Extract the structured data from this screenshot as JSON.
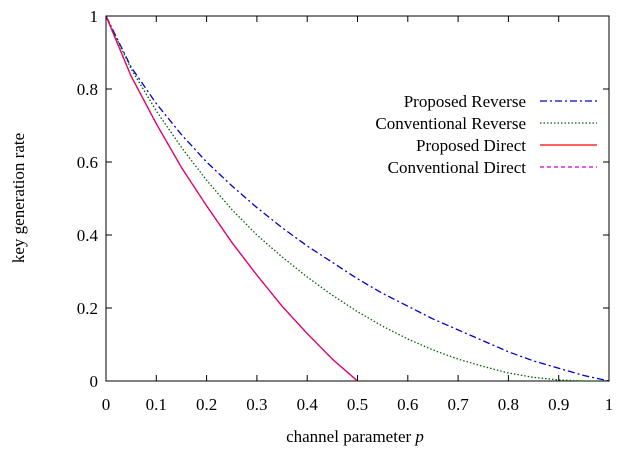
{
  "chart_data": {
    "type": "line",
    "xlabel": "channel parameter",
    "xlabel_var": "p",
    "ylabel": "key generation rate",
    "xlim": [
      0,
      1
    ],
    "ylim": [
      0,
      1
    ],
    "xticks": [
      0,
      0.1,
      0.2,
      0.3,
      0.4,
      0.5,
      0.6,
      0.7,
      0.8,
      0.9,
      1
    ],
    "xtick_labels": [
      "0",
      "0.1",
      "0.2",
      "0.3",
      "0.4",
      "0.5",
      "0.6",
      "0.7",
      "0.8",
      "0.9",
      "1"
    ],
    "yticks": [
      0,
      0.2,
      0.4,
      0.6,
      0.8,
      1
    ],
    "ytick_labels": [
      "0",
      "0.2",
      "0.4",
      "0.6",
      "0.8",
      "1"
    ],
    "grid": false,
    "legend_position": "top-right",
    "series": [
      {
        "name": "Proposed Reverse",
        "color": "#0000cc",
        "dash": "dash-dot",
        "x": [
          0,
          0.05,
          0.1,
          0.15,
          0.2,
          0.25,
          0.3,
          0.35,
          0.4,
          0.45,
          0.5,
          0.55,
          0.6,
          0.65,
          0.7,
          0.75,
          0.8,
          0.85,
          0.9,
          0.95,
          1.0
        ],
        "y": [
          1.0,
          0.86,
          0.76,
          0.675,
          0.6,
          0.535,
          0.475,
          0.42,
          0.37,
          0.325,
          0.28,
          0.24,
          0.205,
          0.17,
          0.14,
          0.11,
          0.08,
          0.055,
          0.035,
          0.015,
          0.0
        ]
      },
      {
        "name": "Conventional Reverse",
        "color": "#006400",
        "dash": "dotted",
        "x": [
          0,
          0.05,
          0.1,
          0.15,
          0.2,
          0.25,
          0.3,
          0.35,
          0.4,
          0.45,
          0.5,
          0.55,
          0.6,
          0.65,
          0.7,
          0.75,
          0.8,
          0.85,
          0.9,
          0.95,
          1.0
        ],
        "y": [
          1.0,
          0.855,
          0.74,
          0.64,
          0.55,
          0.47,
          0.4,
          0.34,
          0.285,
          0.235,
          0.19,
          0.15,
          0.115,
          0.085,
          0.06,
          0.04,
          0.022,
          0.01,
          0.003,
          0.0,
          0.0
        ]
      },
      {
        "name": "Proposed Direct",
        "color": "#ff0000",
        "dash": "solid",
        "x": [
          0,
          0.05,
          0.1,
          0.15,
          0.2,
          0.25,
          0.3,
          0.35,
          0.4,
          0.45,
          0.5
        ],
        "y": [
          1.0,
          0.835,
          0.705,
          0.585,
          0.48,
          0.38,
          0.29,
          0.205,
          0.13,
          0.06,
          0.0
        ]
      },
      {
        "name": "Conventional Direct",
        "color": "#cc00cc",
        "dash": "dashed",
        "x": [
          0,
          0.05,
          0.1,
          0.15,
          0.2,
          0.25,
          0.3,
          0.35,
          0.4,
          0.45,
          0.5
        ],
        "y": [
          1.0,
          0.835,
          0.705,
          0.585,
          0.48,
          0.38,
          0.29,
          0.205,
          0.13,
          0.06,
          0.0
        ]
      }
    ]
  }
}
